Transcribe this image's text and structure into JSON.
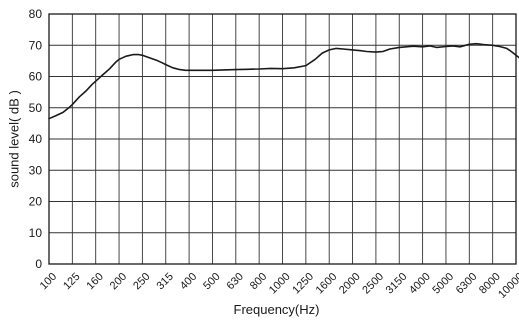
{
  "chart_data": {
    "type": "line",
    "title": "",
    "xlabel": "Frequency(Hz)",
    "ylabel": "sound level( dB )",
    "x_scale": "third-octave band (log)",
    "categories": [
      "100",
      "125",
      "160",
      "200",
      "250",
      "315",
      "400",
      "500",
      "630",
      "800",
      "1000",
      "1250",
      "1600",
      "2000",
      "2500",
      "3150",
      "4000",
      "5000",
      "6300",
      "8000",
      "10000"
    ],
    "y_ticks": [
      "0",
      "10",
      "20",
      "30",
      "40",
      "50",
      "60",
      "70",
      "80"
    ],
    "ylim": [
      0,
      80
    ],
    "grid": true,
    "series": [
      {
        "name": "",
        "color": "#1a1a1a",
        "points": [
          [
            0,
            46.5
          ],
          [
            0.3,
            47.5
          ],
          [
            0.6,
            48.5
          ],
          [
            0.85,
            50.0
          ],
          [
            1.0,
            51.0
          ],
          [
            1.3,
            53.5
          ],
          [
            1.6,
            55.5
          ],
          [
            1.85,
            57.5
          ],
          [
            2.0,
            58.5
          ],
          [
            2.3,
            60.5
          ],
          [
            2.6,
            62.5
          ],
          [
            2.85,
            64.5
          ],
          [
            3.0,
            65.5
          ],
          [
            3.3,
            66.5
          ],
          [
            3.6,
            67.0
          ],
          [
            3.85,
            67.0
          ],
          [
            4.0,
            66.8
          ],
          [
            4.3,
            66.0
          ],
          [
            4.6,
            65.2
          ],
          [
            4.85,
            64.4
          ],
          [
            5.0,
            63.8
          ],
          [
            5.3,
            62.8
          ],
          [
            5.6,
            62.2
          ],
          [
            5.85,
            62.0
          ],
          [
            6.0,
            62.0
          ],
          [
            6.5,
            62.0
          ],
          [
            7.0,
            62.0
          ],
          [
            7.5,
            62.1
          ],
          [
            8.0,
            62.2
          ],
          [
            8.5,
            62.3
          ],
          [
            9.0,
            62.4
          ],
          [
            9.5,
            62.6
          ],
          [
            10.0,
            62.5
          ],
          [
            10.5,
            62.8
          ],
          [
            11.0,
            63.5
          ],
          [
            11.4,
            65.5
          ],
          [
            11.7,
            67.5
          ],
          [
            12.0,
            68.5
          ],
          [
            12.3,
            69.0
          ],
          [
            12.6,
            68.8
          ],
          [
            13.0,
            68.5
          ],
          [
            13.3,
            68.3
          ],
          [
            13.6,
            68.0
          ],
          [
            14.0,
            67.8
          ],
          [
            14.3,
            68.0
          ],
          [
            14.6,
            68.8
          ],
          [
            15.0,
            69.3
          ],
          [
            15.3,
            69.5
          ],
          [
            15.6,
            69.7
          ],
          [
            16.0,
            69.5
          ],
          [
            16.3,
            69.8
          ],
          [
            16.6,
            69.3
          ],
          [
            17.0,
            69.6
          ],
          [
            17.3,
            69.8
          ],
          [
            17.6,
            69.5
          ],
          [
            18.0,
            70.3
          ],
          [
            18.3,
            70.5
          ],
          [
            18.6,
            70.2
          ],
          [
            19.0,
            70.0
          ],
          [
            19.3,
            69.6
          ],
          [
            19.6,
            69.0
          ],
          [
            19.8,
            68.0
          ],
          [
            20.0,
            66.8
          ],
          [
            20.15,
            66.0
          ],
          [
            20.3,
            64.8
          ],
          [
            20.45,
            63.8
          ],
          [
            20.6,
            63.2
          ]
        ]
      }
    ]
  }
}
